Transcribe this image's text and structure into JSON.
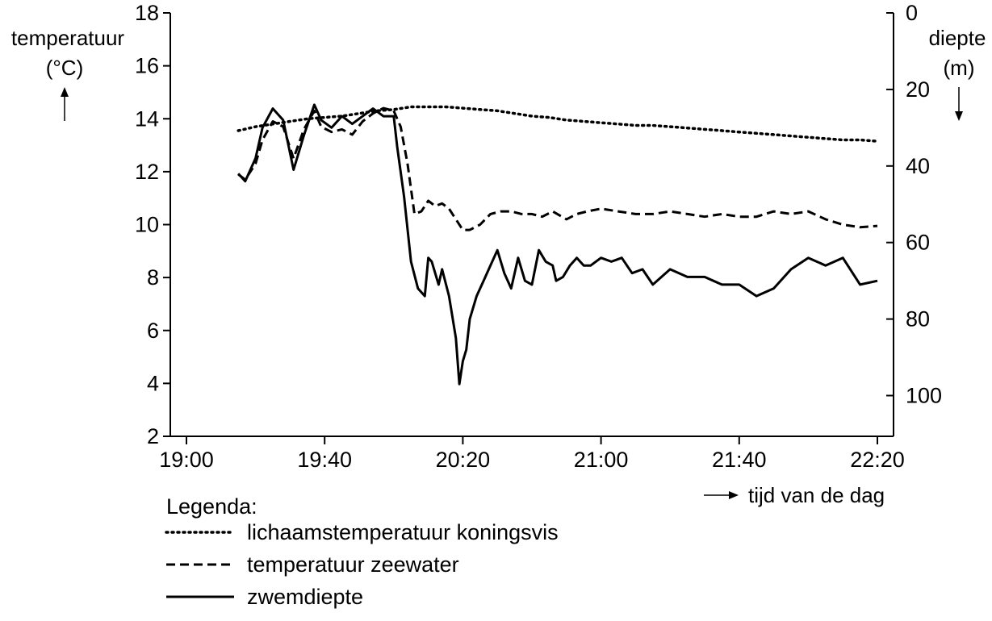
{
  "chart_data": {
    "type": "line",
    "x_axis": {
      "label": "tijd van de dag",
      "ticks": [
        "19:00",
        "19:40",
        "20:20",
        "21:00",
        "21:40",
        "22:20"
      ]
    },
    "y_left": {
      "label": "temperatuur",
      "unit": "(°C)",
      "range": [
        2,
        18
      ],
      "ticks": [
        2,
        4,
        6,
        8,
        10,
        12,
        14,
        16,
        18
      ]
    },
    "y_right": {
      "label": "diepte",
      "unit": "(m)",
      "range": [
        0,
        110
      ],
      "inverted": true,
      "ticks": [
        0,
        20,
        40,
        60,
        80,
        100
      ]
    },
    "legend": {
      "title": "Legenda:",
      "items": [
        {
          "label": "lichaamstemperatuur koningsvis",
          "style": "dotted"
        },
        {
          "label": "temperatuur zeewater",
          "style": "dashed"
        },
        {
          "label": "zwemdiepte",
          "style": "solid"
        }
      ]
    },
    "series": [
      {
        "name": "lichaamstemperatuur koningsvis",
        "axis": "left",
        "style": "dotted",
        "x": [
          "19:15",
          "19:20",
          "19:25",
          "19:30",
          "19:35",
          "19:40",
          "19:45",
          "19:50",
          "19:55",
          "20:00",
          "20:05",
          "20:10",
          "20:15",
          "20:20",
          "20:25",
          "20:30",
          "20:35",
          "20:40",
          "20:45",
          "20:50",
          "20:55",
          "21:00",
          "21:05",
          "21:10",
          "21:15",
          "21:20",
          "21:25",
          "21:30",
          "21:35",
          "21:40",
          "21:45",
          "21:50",
          "21:55",
          "22:00",
          "22:05",
          "22:10",
          "22:15",
          "22:20"
        ],
        "values": [
          13.55,
          13.7,
          13.8,
          13.9,
          14.0,
          14.05,
          14.1,
          14.2,
          14.3,
          14.35,
          14.45,
          14.45,
          14.45,
          14.4,
          14.35,
          14.3,
          14.2,
          14.1,
          14.05,
          13.95,
          13.9,
          13.85,
          13.8,
          13.75,
          13.75,
          13.7,
          13.65,
          13.6,
          13.55,
          13.5,
          13.45,
          13.4,
          13.35,
          13.3,
          13.25,
          13.2,
          13.2,
          13.15
        ]
      },
      {
        "name": "temperatuur zeewater",
        "axis": "left",
        "style": "dashed",
        "x": [
          "19:15",
          "19:17",
          "19:20",
          "19:22",
          "19:25",
          "19:28",
          "19:31",
          "19:34",
          "19:37",
          "19:39",
          "19:42",
          "19:45",
          "19:48",
          "19:51",
          "19:54",
          "19:57",
          "20:00",
          "20:02",
          "20:04",
          "20:06",
          "20:08",
          "20:10",
          "20:12",
          "20:14",
          "20:16",
          "20:18",
          "20:20",
          "20:22",
          "20:25",
          "20:28",
          "20:31",
          "20:34",
          "20:37",
          "20:40",
          "20:43",
          "20:46",
          "20:50",
          "20:53",
          "20:56",
          "21:00",
          "21:05",
          "21:10",
          "21:15",
          "21:20",
          "21:25",
          "21:30",
          "21:35",
          "21:40",
          "21:45",
          "21:50",
          "21:55",
          "22:00",
          "22:05",
          "22:10",
          "22:15",
          "22:20"
        ],
        "values": [
          11.9,
          11.7,
          12.3,
          13.2,
          13.9,
          13.7,
          12.5,
          13.6,
          14.3,
          13.7,
          13.5,
          13.6,
          13.4,
          13.9,
          14.2,
          14.4,
          14.3,
          13.7,
          12.3,
          10.4,
          10.5,
          10.9,
          10.7,
          10.8,
          10.6,
          10.2,
          9.8,
          9.8,
          10.0,
          10.4,
          10.5,
          10.5,
          10.4,
          10.4,
          10.3,
          10.5,
          10.2,
          10.4,
          10.5,
          10.6,
          10.5,
          10.4,
          10.4,
          10.5,
          10.4,
          10.3,
          10.4,
          10.3,
          10.3,
          10.5,
          10.4,
          10.5,
          10.2,
          10.0,
          9.9,
          9.95
        ]
      },
      {
        "name": "zwemdiepte",
        "axis": "right",
        "style": "solid",
        "x": [
          "19:15",
          "19:17",
          "19:20",
          "19:22",
          "19:25",
          "19:28",
          "19:31",
          "19:34",
          "19:37",
          "19:39",
          "19:42",
          "19:45",
          "19:48",
          "19:51",
          "19:54",
          "19:57",
          "20:00",
          "20:01",
          "20:03",
          "20:05",
          "20:07",
          "20:09",
          "20:10",
          "20:11",
          "20:13",
          "20:14",
          "20:16",
          "20:18",
          "20:19",
          "20:20",
          "20:21",
          "20:22",
          "20:24",
          "20:26",
          "20:28",
          "20:30",
          "20:32",
          "20:34",
          "20:36",
          "20:38",
          "20:40",
          "20:42",
          "20:44",
          "20:46",
          "20:47",
          "20:49",
          "20:51",
          "20:53",
          "20:55",
          "20:57",
          "21:00",
          "21:03",
          "21:06",
          "21:09",
          "21:12",
          "21:15",
          "21:20",
          "21:25",
          "21:30",
          "21:35",
          "21:40",
          "21:45",
          "21:50",
          "21:55",
          "22:00",
          "22:05",
          "22:10",
          "22:15",
          "22:20"
        ],
        "values": [
          42,
          44,
          38,
          30,
          25,
          28,
          41,
          32,
          24,
          28,
          30,
          27,
          29,
          27,
          25,
          27,
          27,
          35,
          48,
          65,
          72,
          74,
          64,
          65,
          71,
          67,
          74,
          85,
          97,
          91,
          88,
          80,
          74,
          70,
          66,
          62,
          68,
          72,
          64,
          70,
          71,
          62,
          65,
          66,
          70,
          69,
          66,
          64,
          66,
          66,
          64,
          65,
          64,
          68,
          67,
          71,
          67,
          69,
          69,
          71,
          71,
          74,
          72,
          67,
          64,
          66,
          64,
          71,
          70
        ]
      }
    ]
  }
}
